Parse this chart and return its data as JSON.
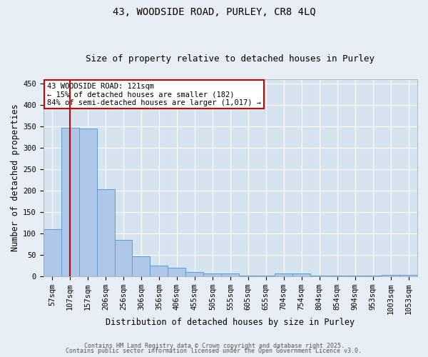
{
  "title1": "43, WOODSIDE ROAD, PURLEY, CR8 4LQ",
  "title2": "Size of property relative to detached houses in Purley",
  "xlabel": "Distribution of detached houses by size in Purley",
  "ylabel": "Number of detached properties",
  "categories": [
    "57sqm",
    "107sqm",
    "157sqm",
    "206sqm",
    "256sqm",
    "306sqm",
    "356sqm",
    "406sqm",
    "455sqm",
    "505sqm",
    "555sqm",
    "605sqm",
    "655sqm",
    "704sqm",
    "754sqm",
    "804sqm",
    "854sqm",
    "904sqm",
    "953sqm",
    "1003sqm",
    "1053sqm"
  ],
  "values": [
    110,
    348,
    345,
    203,
    85,
    47,
    25,
    20,
    10,
    7,
    6,
    2,
    1,
    7,
    7,
    2,
    1,
    1,
    1,
    3,
    3
  ],
  "bar_color": "#aec6e8",
  "bar_edge_color": "#5b9bd5",
  "vline_x": 1,
  "vline_color": "#cc0000",
  "ylim": [
    0,
    460
  ],
  "annotation_text": "43 WOODSIDE ROAD: 121sqm\n← 15% of detached houses are smaller (182)\n84% of semi-detached houses are larger (1,017) →",
  "annotation_box_color": "#ffffff",
  "annotation_box_edge": "#cc0000",
  "footer1": "Contains HM Land Registry data © Crown copyright and database right 2025.",
  "footer2": "Contains public sector information licensed under the Open Government Licence v3.0.",
  "bg_color": "#e8eef5",
  "plot_bg_color": "#d6e4f0",
  "grid_color": "#ffffff",
  "title_fontsize": 10,
  "subtitle_fontsize": 9,
  "tick_fontsize": 7.5,
  "label_fontsize": 8.5
}
